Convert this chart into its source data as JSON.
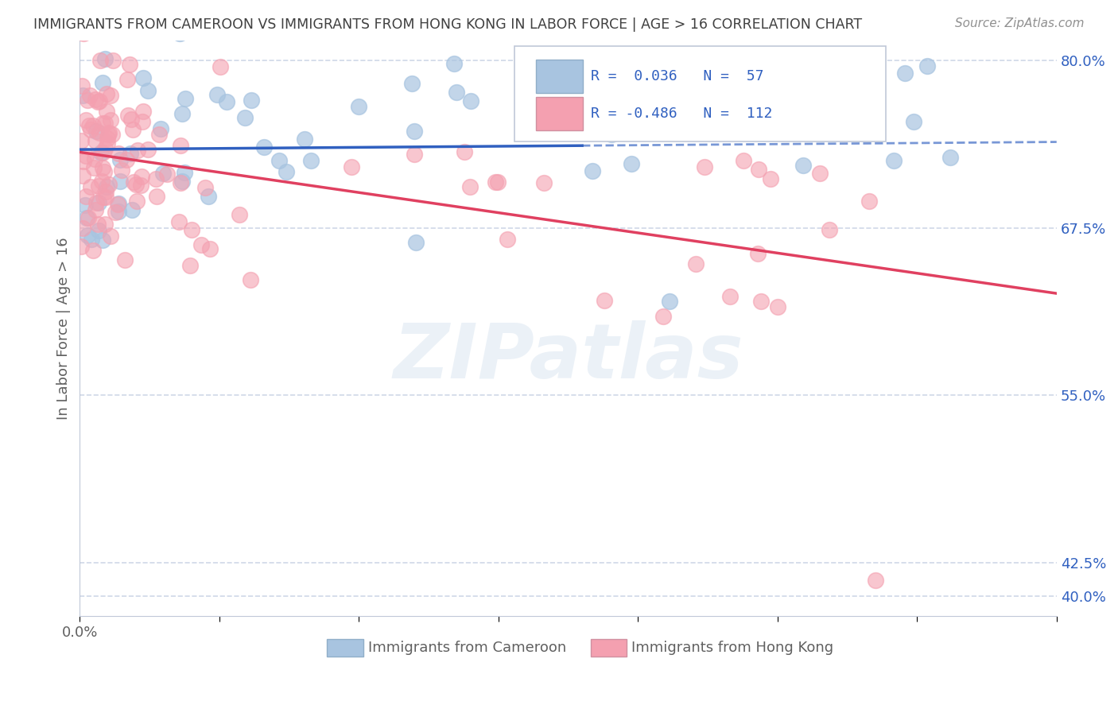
{
  "title": "IMMIGRANTS FROM CAMEROON VS IMMIGRANTS FROM HONG KONG IN LABOR FORCE | AGE > 16 CORRELATION CHART",
  "source": "Source: ZipAtlas.com",
  "ylabel": "In Labor Force | Age > 16",
  "watermark": "ZIPatlas",
  "blue_label": "Immigrants from Cameroon",
  "pink_label": "Immigrants from Hong Kong",
  "blue_R": 0.036,
  "blue_N": 57,
  "pink_R": -0.486,
  "pink_N": 112,
  "blue_color": "#a8c4e0",
  "pink_color": "#f4a0b0",
  "blue_line_color": "#3060c0",
  "pink_line_color": "#e04060",
  "xlim": [
    0.0,
    0.35
  ],
  "ylim": [
    0.385,
    0.815
  ],
  "yticks": [
    0.4,
    0.425,
    0.55,
    0.675,
    0.8
  ],
  "ytick_labels": [
    "40.0%",
    "42.5%",
    "55.0%",
    "67.5%",
    "80.0%"
  ],
  "xticks": [
    0.0,
    0.05,
    0.1,
    0.15,
    0.2,
    0.25,
    0.3,
    0.35
  ],
  "blue_seed": 42,
  "pink_seed": 7,
  "background_color": "#ffffff",
  "title_color": "#404040",
  "axis_label_color": "#606060",
  "tick_color": "#3060c0",
  "grid_color": "#d0d8e8"
}
